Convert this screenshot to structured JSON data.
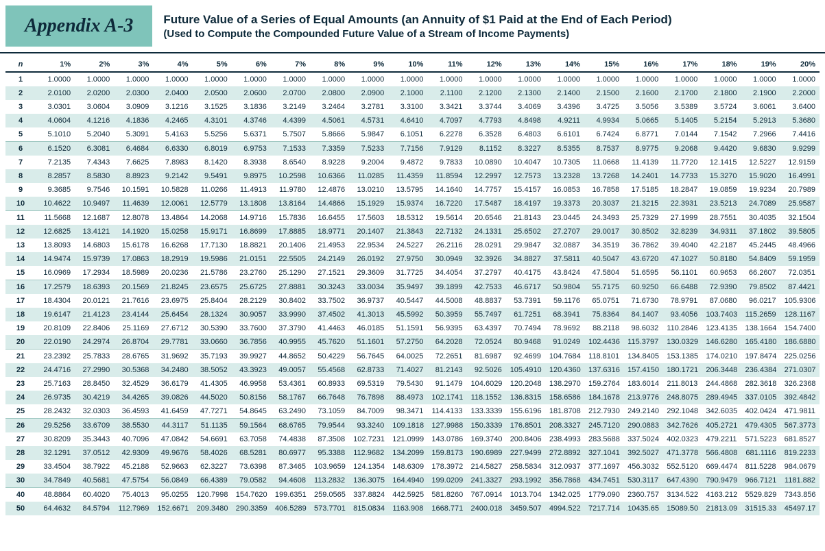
{
  "header": {
    "appendix": "Appendix A-3",
    "title": "Future Value of a Series of Equal Amounts (an Annuity of $1 Paid at the End of Each Period)",
    "subtitle": "(Used to Compute the Compounded Future Value of a Stream of Income Payments)"
  },
  "table": {
    "n_label": "n",
    "columns": [
      "1%",
      "2%",
      "3%",
      "4%",
      "5%",
      "6%",
      "7%",
      "8%",
      "9%",
      "10%",
      "11%",
      "12%",
      "13%",
      "14%",
      "15%",
      "16%",
      "17%",
      "18%",
      "19%",
      "20%"
    ],
    "rows": [
      {
        "n": "1",
        "v": [
          "1.0000",
          "1.0000",
          "1.0000",
          "1.0000",
          "1.0000",
          "1.0000",
          "1.0000",
          "1.0000",
          "1.0000",
          "1.0000",
          "1.0000",
          "1.0000",
          "1.0000",
          "1.0000",
          "1.0000",
          "1.0000",
          "1.0000",
          "1.0000",
          "1.0000",
          "1.0000"
        ]
      },
      {
        "n": "2",
        "v": [
          "2.0100",
          "2.0200",
          "2.0300",
          "2.0400",
          "2.0500",
          "2.0600",
          "2.0700",
          "2.0800",
          "2.0900",
          "2.1000",
          "2.1100",
          "2.1200",
          "2.1300",
          "2.1400",
          "2.1500",
          "2.1600",
          "2.1700",
          "2.1800",
          "2.1900",
          "2.2000"
        ]
      },
      {
        "n": "3",
        "v": [
          "3.0301",
          "3.0604",
          "3.0909",
          "3.1216",
          "3.1525",
          "3.1836",
          "3.2149",
          "3.2464",
          "3.2781",
          "3.3100",
          "3.3421",
          "3.3744",
          "3.4069",
          "3.4396",
          "3.4725",
          "3.5056",
          "3.5389",
          "3.5724",
          "3.6061",
          "3.6400"
        ]
      },
      {
        "n": "4",
        "v": [
          "4.0604",
          "4.1216",
          "4.1836",
          "4.2465",
          "4.3101",
          "4.3746",
          "4.4399",
          "4.5061",
          "4.5731",
          "4.6410",
          "4.7097",
          "4.7793",
          "4.8498",
          "4.9211",
          "4.9934",
          "5.0665",
          "5.1405",
          "5.2154",
          "5.2913",
          "5.3680"
        ]
      },
      {
        "n": "5",
        "v": [
          "5.1010",
          "5.2040",
          "5.3091",
          "5.4163",
          "5.5256",
          "5.6371",
          "5.7507",
          "5.8666",
          "5.9847",
          "6.1051",
          "6.2278",
          "6.3528",
          "6.4803",
          "6.6101",
          "6.7424",
          "6.8771",
          "7.0144",
          "7.1542",
          "7.2966",
          "7.4416"
        ]
      },
      {
        "n": "6",
        "v": [
          "6.1520",
          "6.3081",
          "6.4684",
          "6.6330",
          "6.8019",
          "6.9753",
          "7.1533",
          "7.3359",
          "7.5233",
          "7.7156",
          "7.9129",
          "8.1152",
          "8.3227",
          "8.5355",
          "8.7537",
          "8.9775",
          "9.2068",
          "9.4420",
          "9.6830",
          "9.9299"
        ]
      },
      {
        "n": "7",
        "v": [
          "7.2135",
          "7.4343",
          "7.6625",
          "7.8983",
          "8.1420",
          "8.3938",
          "8.6540",
          "8.9228",
          "9.2004",
          "9.4872",
          "9.7833",
          "10.0890",
          "10.4047",
          "10.7305",
          "11.0668",
          "11.4139",
          "11.7720",
          "12.1415",
          "12.5227",
          "12.9159"
        ]
      },
      {
        "n": "8",
        "v": [
          "8.2857",
          "8.5830",
          "8.8923",
          "9.2142",
          "9.5491",
          "9.8975",
          "10.2598",
          "10.6366",
          "11.0285",
          "11.4359",
          "11.8594",
          "12.2997",
          "12.7573",
          "13.2328",
          "13.7268",
          "14.2401",
          "14.7733",
          "15.3270",
          "15.9020",
          "16.4991"
        ]
      },
      {
        "n": "9",
        "v": [
          "9.3685",
          "9.7546",
          "10.1591",
          "10.5828",
          "11.0266",
          "11.4913",
          "11.9780",
          "12.4876",
          "13.0210",
          "13.5795",
          "14.1640",
          "14.7757",
          "15.4157",
          "16.0853",
          "16.7858",
          "17.5185",
          "18.2847",
          "19.0859",
          "19.9234",
          "20.7989"
        ]
      },
      {
        "n": "10",
        "v": [
          "10.4622",
          "10.9497",
          "11.4639",
          "12.0061",
          "12.5779",
          "13.1808",
          "13.8164",
          "14.4866",
          "15.1929",
          "15.9374",
          "16.7220",
          "17.5487",
          "18.4197",
          "19.3373",
          "20.3037",
          "21.3215",
          "22.3931",
          "23.5213",
          "24.7089",
          "25.9587"
        ]
      },
      {
        "n": "11",
        "v": [
          "11.5668",
          "12.1687",
          "12.8078",
          "13.4864",
          "14.2068",
          "14.9716",
          "15.7836",
          "16.6455",
          "17.5603",
          "18.5312",
          "19.5614",
          "20.6546",
          "21.8143",
          "23.0445",
          "24.3493",
          "25.7329",
          "27.1999",
          "28.7551",
          "30.4035",
          "32.1504"
        ]
      },
      {
        "n": "12",
        "v": [
          "12.6825",
          "13.4121",
          "14.1920",
          "15.0258",
          "15.9171",
          "16.8699",
          "17.8885",
          "18.9771",
          "20.1407",
          "21.3843",
          "22.7132",
          "24.1331",
          "25.6502",
          "27.2707",
          "29.0017",
          "30.8502",
          "32.8239",
          "34.9311",
          "37.1802",
          "39.5805"
        ]
      },
      {
        "n": "13",
        "v": [
          "13.8093",
          "14.6803",
          "15.6178",
          "16.6268",
          "17.7130",
          "18.8821",
          "20.1406",
          "21.4953",
          "22.9534",
          "24.5227",
          "26.2116",
          "28.0291",
          "29.9847",
          "32.0887",
          "34.3519",
          "36.7862",
          "39.4040",
          "42.2187",
          "45.2445",
          "48.4966"
        ]
      },
      {
        "n": "14",
        "v": [
          "14.9474",
          "15.9739",
          "17.0863",
          "18.2919",
          "19.5986",
          "21.0151",
          "22.5505",
          "24.2149",
          "26.0192",
          "27.9750",
          "30.0949",
          "32.3926",
          "34.8827",
          "37.5811",
          "40.5047",
          "43.6720",
          "47.1027",
          "50.8180",
          "54.8409",
          "59.1959"
        ]
      },
      {
        "n": "15",
        "v": [
          "16.0969",
          "17.2934",
          "18.5989",
          "20.0236",
          "21.5786",
          "23.2760",
          "25.1290",
          "27.1521",
          "29.3609",
          "31.7725",
          "34.4054",
          "37.2797",
          "40.4175",
          "43.8424",
          "47.5804",
          "51.6595",
          "56.1101",
          "60.9653",
          "66.2607",
          "72.0351"
        ]
      },
      {
        "n": "16",
        "v": [
          "17.2579",
          "18.6393",
          "20.1569",
          "21.8245",
          "23.6575",
          "25.6725",
          "27.8881",
          "30.3243",
          "33.0034",
          "35.9497",
          "39.1899",
          "42.7533",
          "46.6717",
          "50.9804",
          "55.7175",
          "60.9250",
          "66.6488",
          "72.9390",
          "79.8502",
          "87.4421"
        ]
      },
      {
        "n": "17",
        "v": [
          "18.4304",
          "20.0121",
          "21.7616",
          "23.6975",
          "25.8404",
          "28.2129",
          "30.8402",
          "33.7502",
          "36.9737",
          "40.5447",
          "44.5008",
          "48.8837",
          "53.7391",
          "59.1176",
          "65.0751",
          "71.6730",
          "78.9791",
          "87.0680",
          "96.0217",
          "105.9306"
        ]
      },
      {
        "n": "18",
        "v": [
          "19.6147",
          "21.4123",
          "23.4144",
          "25.6454",
          "28.1324",
          "30.9057",
          "33.9990",
          "37.4502",
          "41.3013",
          "45.5992",
          "50.3959",
          "55.7497",
          "61.7251",
          "68.3941",
          "75.8364",
          "84.1407",
          "93.4056",
          "103.7403",
          "115.2659",
          "128.1167"
        ]
      },
      {
        "n": "19",
        "v": [
          "20.8109",
          "22.8406",
          "25.1169",
          "27.6712",
          "30.5390",
          "33.7600",
          "37.3790",
          "41.4463",
          "46.0185",
          "51.1591",
          "56.9395",
          "63.4397",
          "70.7494",
          "78.9692",
          "88.2118",
          "98.6032",
          "110.2846",
          "123.4135",
          "138.1664",
          "154.7400"
        ]
      },
      {
        "n": "20",
        "v": [
          "22.0190",
          "24.2974",
          "26.8704",
          "29.7781",
          "33.0660",
          "36.7856",
          "40.9955",
          "45.7620",
          "51.1601",
          "57.2750",
          "64.2028",
          "72.0524",
          "80.9468",
          "91.0249",
          "102.4436",
          "115.3797",
          "130.0329",
          "146.6280",
          "165.4180",
          "186.6880"
        ]
      },
      {
        "n": "21",
        "v": [
          "23.2392",
          "25.7833",
          "28.6765",
          "31.9692",
          "35.7193",
          "39.9927",
          "44.8652",
          "50.4229",
          "56.7645",
          "64.0025",
          "72.2651",
          "81.6987",
          "92.4699",
          "104.7684",
          "118.8101",
          "134.8405",
          "153.1385",
          "174.0210",
          "197.8474",
          "225.0256"
        ]
      },
      {
        "n": "22",
        "v": [
          "24.4716",
          "27.2990",
          "30.5368",
          "34.2480",
          "38.5052",
          "43.3923",
          "49.0057",
          "55.4568",
          "62.8733",
          "71.4027",
          "81.2143",
          "92.5026",
          "105.4910",
          "120.4360",
          "137.6316",
          "157.4150",
          "180.1721",
          "206.3448",
          "236.4384",
          "271.0307"
        ]
      },
      {
        "n": "23",
        "v": [
          "25.7163",
          "28.8450",
          "32.4529",
          "36.6179",
          "41.4305",
          "46.9958",
          "53.4361",
          "60.8933",
          "69.5319",
          "79.5430",
          "91.1479",
          "104.6029",
          "120.2048",
          "138.2970",
          "159.2764",
          "183.6014",
          "211.8013",
          "244.4868",
          "282.3618",
          "326.2368"
        ]
      },
      {
        "n": "24",
        "v": [
          "26.9735",
          "30.4219",
          "34.4265",
          "39.0826",
          "44.5020",
          "50.8156",
          "58.1767",
          "66.7648",
          "76.7898",
          "88.4973",
          "102.1741",
          "118.1552",
          "136.8315",
          "158.6586",
          "184.1678",
          "213.9776",
          "248.8075",
          "289.4945",
          "337.0105",
          "392.4842"
        ]
      },
      {
        "n": "25",
        "v": [
          "28.2432",
          "32.0303",
          "36.4593",
          "41.6459",
          "47.7271",
          "54.8645",
          "63.2490",
          "73.1059",
          "84.7009",
          "98.3471",
          "114.4133",
          "133.3339",
          "155.6196",
          "181.8708",
          "212.7930",
          "249.2140",
          "292.1048",
          "342.6035",
          "402.0424",
          "471.9811"
        ]
      },
      {
        "n": "26",
        "v": [
          "29.5256",
          "33.6709",
          "38.5530",
          "44.3117",
          "51.1135",
          "59.1564",
          "68.6765",
          "79.9544",
          "93.3240",
          "109.1818",
          "127.9988",
          "150.3339",
          "176.8501",
          "208.3327",
          "245.7120",
          "290.0883",
          "342.7626",
          "405.2721",
          "479.4305",
          "567.3773"
        ]
      },
      {
        "n": "27",
        "v": [
          "30.8209",
          "35.3443",
          "40.7096",
          "47.0842",
          "54.6691",
          "63.7058",
          "74.4838",
          "87.3508",
          "102.7231",
          "121.0999",
          "143.0786",
          "169.3740",
          "200.8406",
          "238.4993",
          "283.5688",
          "337.5024",
          "402.0323",
          "479.2211",
          "571.5223",
          "681.8527"
        ]
      },
      {
        "n": "28",
        "v": [
          "32.1291",
          "37.0512",
          "42.9309",
          "49.9676",
          "58.4026",
          "68.5281",
          "80.6977",
          "95.3388",
          "112.9682",
          "134.2099",
          "159.8173",
          "190.6989",
          "227.9499",
          "272.8892",
          "327.1041",
          "392.5027",
          "471.3778",
          "566.4808",
          "681.1116",
          "819.2233"
        ]
      },
      {
        "n": "29",
        "v": [
          "33.4504",
          "38.7922",
          "45.2188",
          "52.9663",
          "62.3227",
          "73.6398",
          "87.3465",
          "103.9659",
          "124.1354",
          "148.6309",
          "178.3972",
          "214.5827",
          "258.5834",
          "312.0937",
          "377.1697",
          "456.3032",
          "552.5120",
          "669.4474",
          "811.5228",
          "984.0679"
        ]
      },
      {
        "n": "30",
        "v": [
          "34.7849",
          "40.5681",
          "47.5754",
          "56.0849",
          "66.4389",
          "79.0582",
          "94.4608",
          "113.2832",
          "136.3075",
          "164.4940",
          "199.0209",
          "241.3327",
          "293.1992",
          "356.7868",
          "434.7451",
          "530.3117",
          "647.4390",
          "790.9479",
          "966.7121",
          "1181.882"
        ]
      },
      {
        "n": "40",
        "v": [
          "48.8864",
          "60.4020",
          "75.4013",
          "95.0255",
          "120.7998",
          "154.7620",
          "199.6351",
          "259.0565",
          "337.8824",
          "442.5925",
          "581.8260",
          "767.0914",
          "1013.704",
          "1342.025",
          "1779.090",
          "2360.757",
          "3134.522",
          "4163.212",
          "5529.829",
          "7343.856"
        ]
      },
      {
        "n": "50",
        "v": [
          "64.4632",
          "84.5794",
          "112.7969",
          "152.6671",
          "209.3480",
          "290.3359",
          "406.5289",
          "573.7701",
          "815.0834",
          "1163.908",
          "1668.771",
          "2400.018",
          "3459.507",
          "4994.522",
          "7217.714",
          "10435.65",
          "15089.50",
          "21813.09",
          "31515.33",
          "45497.17"
        ]
      }
    ]
  },
  "colors": {
    "accent": "#7fc4ba",
    "ink": "#0e2a3a",
    "zebra": "#d9ecea"
  }
}
